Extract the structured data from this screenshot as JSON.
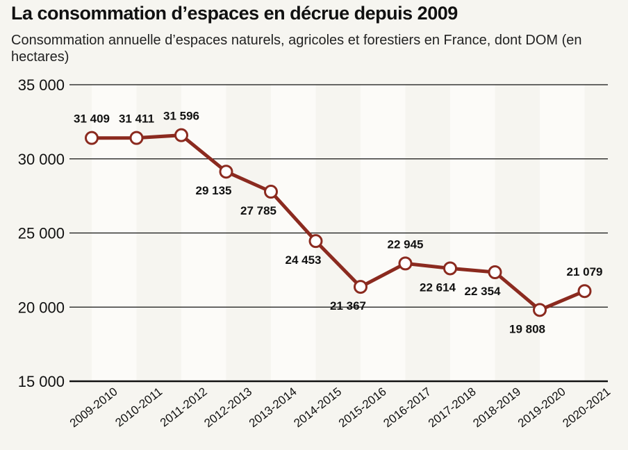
{
  "chart_data": {
    "type": "line",
    "title": "La consommation d’espaces en décrue depuis 2009",
    "subtitle": "Consommation annuelle d’espaces naturels, agricoles et forestiers en France, dont DOM (en hectares)",
    "categories": [
      "2009-2010",
      "2010-2011",
      "2011-2012",
      "2012-2013",
      "2013-2014",
      "2014-2015",
      "2015-2016",
      "2016-2017",
      "2017-2018",
      "2018-2019",
      "2019-2020",
      "2020-2021"
    ],
    "values": [
      31409,
      31411,
      31596,
      29135,
      27785,
      24453,
      21367,
      22945,
      22614,
      22354,
      19808,
      21079
    ],
    "data_labels": [
      "31 409",
      "31 411",
      "31 596",
      "29 135",
      "27 785",
      "24 453",
      "21 367",
      "22 945",
      "22 614",
      "22 354",
      "19 808",
      "21 079"
    ],
    "ylim": [
      15000,
      35000
    ],
    "yticks": [
      15000,
      20000,
      25000,
      30000,
      35000
    ],
    "ytick_labels": [
      "15 000",
      "20 000",
      "25 000",
      "30 000",
      "35 000"
    ],
    "grid": true,
    "colors": {
      "line": "#8b2a1f",
      "marker_fill": "#ffffff",
      "column_band": "#fcfbf8"
    }
  }
}
